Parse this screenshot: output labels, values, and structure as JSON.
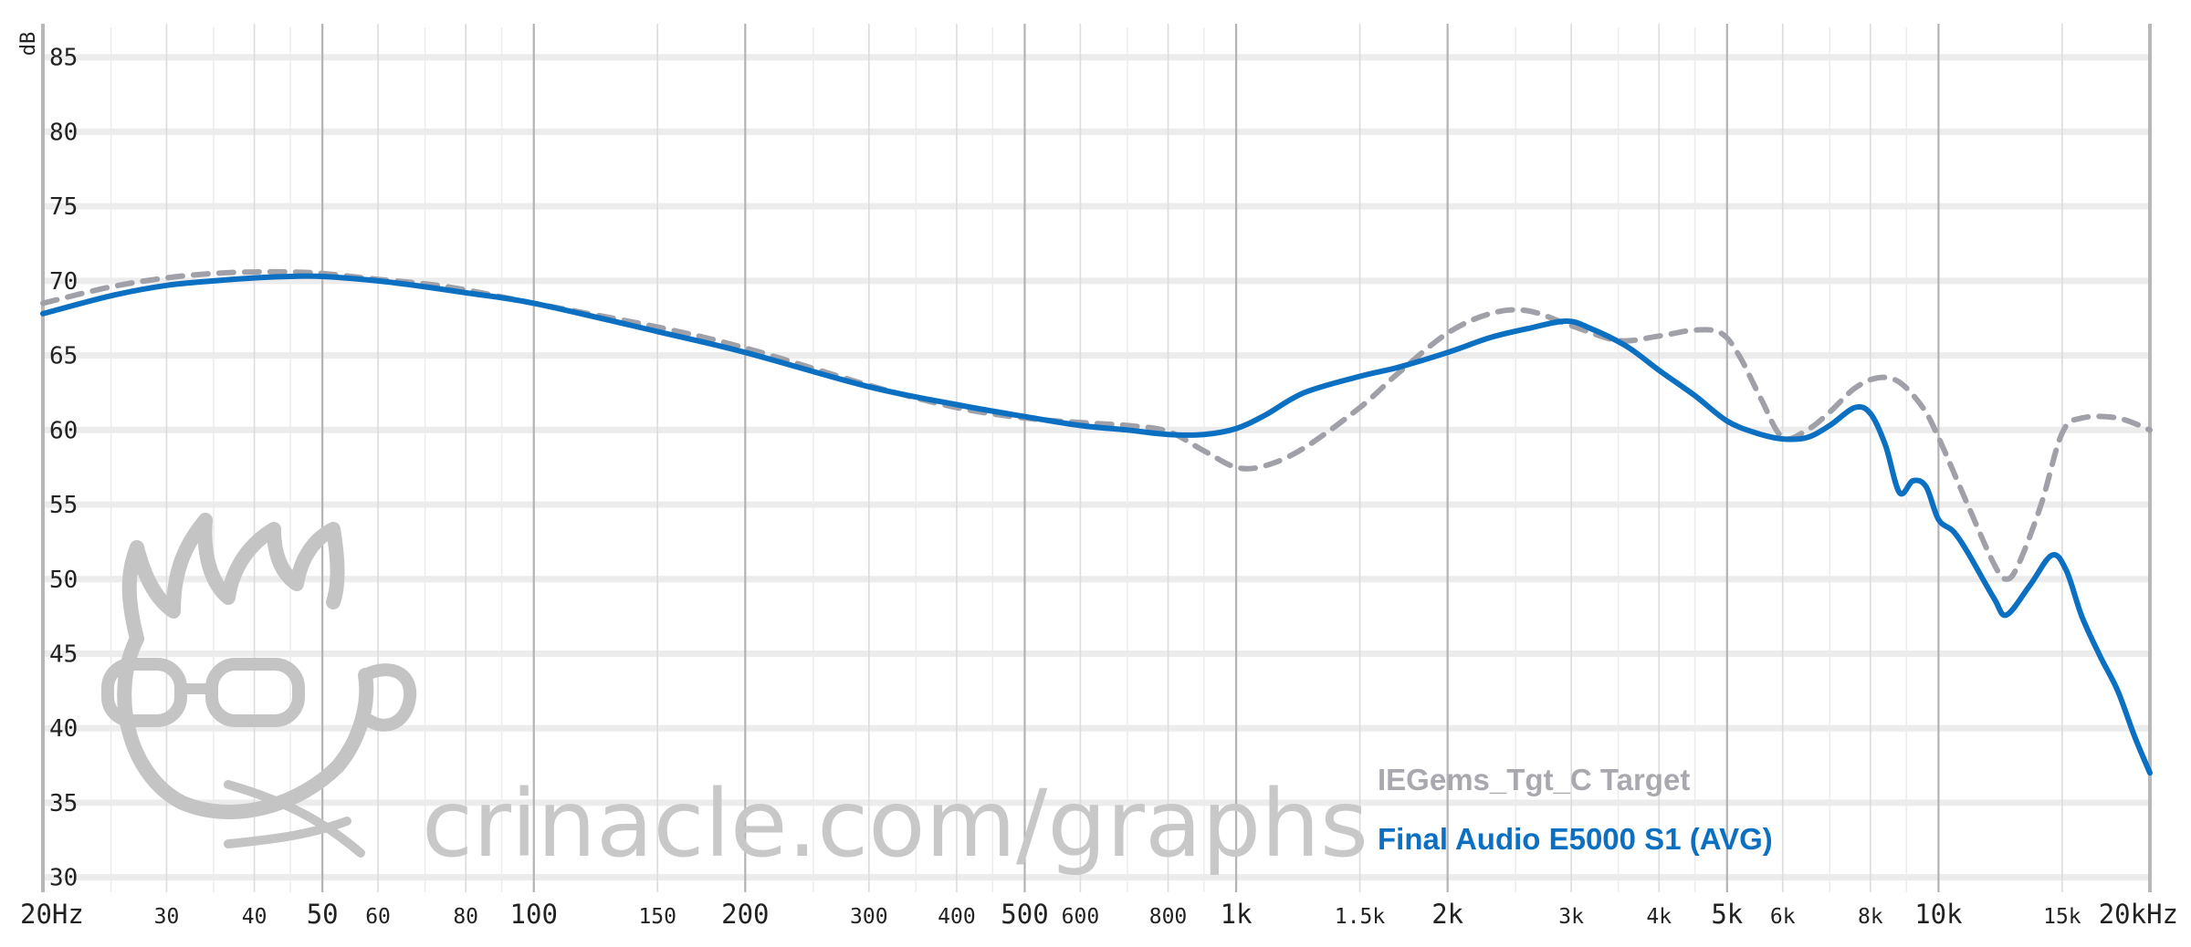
{
  "chart_data": {
    "type": "line",
    "x_scale": "log",
    "xlim": [
      20,
      20000
    ],
    "ylim": [
      29,
      87
    ],
    "ylabel": "dB",
    "grid": true,
    "y_ticks": [
      "30",
      "35",
      "40",
      "45",
      "50",
      "55",
      "60",
      "65",
      "70",
      "75",
      "80",
      "85"
    ],
    "x_ticks": [
      {
        "label": "20Hz",
        "value": 20,
        "major": true
      },
      {
        "label": "30",
        "value": 30,
        "major": false
      },
      {
        "label": "40",
        "value": 40,
        "major": false
      },
      {
        "label": "50",
        "value": 50,
        "major": true
      },
      {
        "label": "60",
        "value": 60,
        "major": false
      },
      {
        "label": "80",
        "value": 80,
        "major": false
      },
      {
        "label": "100",
        "value": 100,
        "major": true
      },
      {
        "label": "150",
        "value": 150,
        "major": false
      },
      {
        "label": "200",
        "value": 200,
        "major": true
      },
      {
        "label": "300",
        "value": 300,
        "major": false
      },
      {
        "label": "400",
        "value": 400,
        "major": false
      },
      {
        "label": "500",
        "value": 500,
        "major": true
      },
      {
        "label": "600",
        "value": 600,
        "major": false
      },
      {
        "label": "800",
        "value": 800,
        "major": false
      },
      {
        "label": "1k",
        "value": 1000,
        "major": true
      },
      {
        "label": "1.5k",
        "value": 1500,
        "major": false
      },
      {
        "label": "2k",
        "value": 2000,
        "major": true
      },
      {
        "label": "3k",
        "value": 3000,
        "major": false
      },
      {
        "label": "4k",
        "value": 4000,
        "major": false
      },
      {
        "label": "5k",
        "value": 5000,
        "major": true
      },
      {
        "label": "6k",
        "value": 6000,
        "major": false
      },
      {
        "label": "8k",
        "value": 8000,
        "major": false
      },
      {
        "label": "10k",
        "value": 10000,
        "major": true
      },
      {
        "label": "15k",
        "value": 15000,
        "major": false
      },
      {
        "label": "20kHz",
        "value": 20000,
        "major": true
      }
    ],
    "minor_gridlines": [
      25,
      35,
      45,
      70,
      90,
      250,
      350,
      450,
      700,
      900,
      2500,
      3500,
      4500,
      7000,
      9000
    ],
    "series": [
      {
        "name": "IEGems_Tgt_C Target",
        "color": "#a0a0a8",
        "style": "dashed",
        "x": [
          20,
          25,
          30,
          35,
          40,
          45,
          50,
          60,
          70,
          80,
          100,
          150,
          200,
          300,
          400,
          500,
          600,
          700,
          800,
          900,
          1000,
          1100,
          1250,
          1500,
          1700,
          2000,
          2300,
          2600,
          3000,
          3500,
          4000,
          4500,
          4900,
          5200,
          5600,
          6000,
          6500,
          7000,
          7600,
          8200,
          8800,
          9500,
          10000,
          11000,
          12000,
          12500,
          13000,
          14000,
          15000,
          16000,
          18000,
          20000
        ],
        "y": [
          68.5,
          69.6,
          70.2,
          70.5,
          70.6,
          70.6,
          70.5,
          70.1,
          69.8,
          69.4,
          68.5,
          66.9,
          65.5,
          63.0,
          61.5,
          60.8,
          60.5,
          60.3,
          59.9,
          58.6,
          57.5,
          57.6,
          58.8,
          61.5,
          63.8,
          66.5,
          67.8,
          68.0,
          67.0,
          66.0,
          66.3,
          66.7,
          66.5,
          65.0,
          62.0,
          59.5,
          60.0,
          61.2,
          62.8,
          63.5,
          63.2,
          61.5,
          59.5,
          55.0,
          51.0,
          50.0,
          51.0,
          55.0,
          59.8,
          60.8,
          60.8,
          60.0
        ]
      },
      {
        "name": "Final Audio E5000 S1 (AVG)",
        "color": "#0b6fc2",
        "style": "solid",
        "x": [
          20,
          25,
          30,
          35,
          40,
          45,
          50,
          60,
          70,
          80,
          100,
          150,
          200,
          300,
          400,
          500,
          600,
          700,
          800,
          900,
          1000,
          1100,
          1250,
          1500,
          1700,
          2000,
          2300,
          2600,
          2950,
          3200,
          3600,
          4000,
          4500,
          5000,
          5500,
          6000,
          6500,
          7000,
          7600,
          8000,
          8400,
          8800,
          9200,
          9600,
          10000,
          10500,
          11000,
          12000,
          12500,
          13500,
          14500,
          15200,
          16000,
          17000,
          18000,
          19000,
          20000
        ],
        "y": [
          67.8,
          69.0,
          69.7,
          70.0,
          70.2,
          70.3,
          70.3,
          70.0,
          69.6,
          69.2,
          68.5,
          66.6,
          65.2,
          62.9,
          61.7,
          60.9,
          60.3,
          60.0,
          59.7,
          59.7,
          60.1,
          61.0,
          62.5,
          63.6,
          64.2,
          65.2,
          66.2,
          66.8,
          67.3,
          66.8,
          65.6,
          64.0,
          62.3,
          60.6,
          59.8,
          59.4,
          59.5,
          60.3,
          61.5,
          61.1,
          59.0,
          55.8,
          56.6,
          56.2,
          54.0,
          53.2,
          51.8,
          48.7,
          47.6,
          49.6,
          51.6,
          50.6,
          47.5,
          44.8,
          42.5,
          39.5,
          37.0
        ]
      }
    ],
    "legend": {
      "placement": "bottom-right"
    }
  },
  "watermark": {
    "text": "crinacle.com/graphs"
  },
  "legend": {
    "target_label": "IEGems_Tgt_C Target",
    "iem_label": "Final Audio E5000 S1 (AVG)"
  }
}
